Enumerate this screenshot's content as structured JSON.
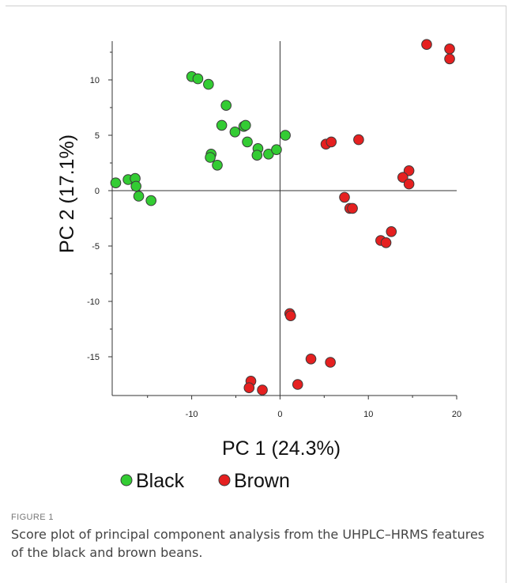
{
  "figure": {
    "label": "FIGURE 1",
    "caption": "Score plot of principal component analysis from the UHPLC–HRMS features of the black and brown beans."
  },
  "chart_data": {
    "type": "scatter",
    "title": "",
    "xlabel": "PC 1 (24.3%)",
    "ylabel": "PC 2 (17.1%)",
    "xlim": [
      -19,
      20
    ],
    "ylim": [
      -18.5,
      13.5
    ],
    "xticks": [
      -10,
      0,
      10,
      20
    ],
    "yticks": [
      10,
      5,
      0,
      -5,
      -10,
      -15
    ],
    "grid": false,
    "zero_lines": true,
    "legend_position": "bottom",
    "series": [
      {
        "name": "Black",
        "color": "#33cc33",
        "points": [
          [
            -18.6,
            0.7
          ],
          [
            -17.2,
            1.0
          ],
          [
            -16.4,
            1.1
          ],
          [
            -16.3,
            0.4
          ],
          [
            -16.0,
            -0.5
          ],
          [
            -14.6,
            -0.9
          ],
          [
            -10.0,
            10.3
          ],
          [
            -9.3,
            10.1
          ],
          [
            -8.1,
            9.6
          ],
          [
            -6.1,
            7.7
          ],
          [
            -6.6,
            5.9
          ],
          [
            -5.1,
            5.3
          ],
          [
            -4.1,
            5.8
          ],
          [
            -3.9,
            5.9
          ],
          [
            -3.7,
            4.4
          ],
          [
            -7.8,
            3.3
          ],
          [
            -7.9,
            3.0
          ],
          [
            -7.1,
            2.3
          ],
          [
            -2.5,
            3.8
          ],
          [
            -2.6,
            3.2
          ],
          [
            -1.3,
            3.3
          ],
          [
            -0.4,
            3.7
          ],
          [
            0.6,
            5.0
          ]
        ]
      },
      {
        "name": "Brown",
        "color": "#e52020",
        "points": [
          [
            16.6,
            13.2
          ],
          [
            19.2,
            12.8
          ],
          [
            19.2,
            11.9
          ],
          [
            5.2,
            4.2
          ],
          [
            5.8,
            4.4
          ],
          [
            8.9,
            4.6
          ],
          [
            14.6,
            1.8
          ],
          [
            13.9,
            1.2
          ],
          [
            14.6,
            0.6
          ],
          [
            7.3,
            -0.6
          ],
          [
            7.9,
            -1.6
          ],
          [
            8.2,
            -1.6
          ],
          [
            11.4,
            -4.5
          ],
          [
            12.0,
            -4.7
          ],
          [
            12.6,
            -3.7
          ],
          [
            1.1,
            -11.1
          ],
          [
            1.2,
            -11.3
          ],
          [
            3.5,
            -15.2
          ],
          [
            5.7,
            -15.5
          ],
          [
            -3.3,
            -17.2
          ],
          [
            -3.5,
            -17.8
          ],
          [
            -2.0,
            -18.0
          ],
          [
            2.0,
            -17.5
          ]
        ]
      }
    ]
  }
}
